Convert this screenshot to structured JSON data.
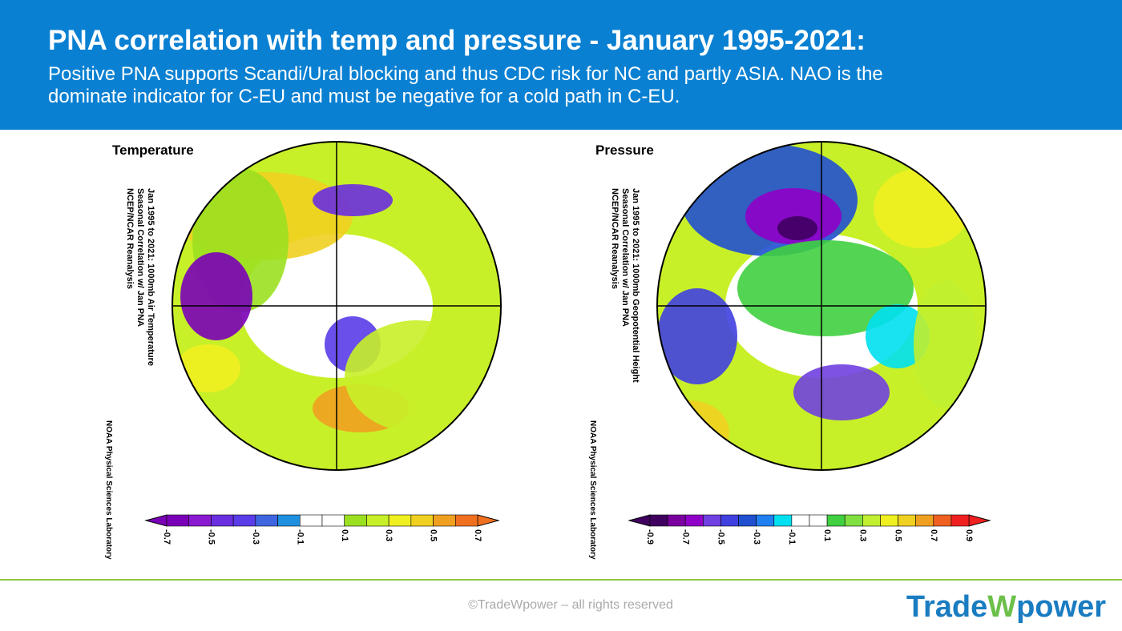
{
  "header": {
    "title": "PNA correlation with temp and pressure - January 1995-2021:",
    "subtitle_lines": [
      "Positive PNA supports Scandi/Ural blocking and thus CDC risk for NC and partly ASIA. NAO is the",
      "dominate indicator for C-EU and must be negative for a cold path in C-EU."
    ]
  },
  "panels": [
    {
      "label": "Temperature",
      "side_text": [
        "Jan 1995 to 2021: 1000mb Air Temperature",
        "Seasonal Correlation w/ Jan PNA",
        "NCEP/NCAR Reanalysis"
      ],
      "credit": "NOAA Physical Sciences Laboratory",
      "colorbar": {
        "labels": [
          "-0.7",
          "-0.5",
          "-0.3",
          "-0.1",
          "0.1",
          "0.3",
          "0.5",
          "0.7"
        ],
        "colors": [
          "#7a00b8",
          "#8a1ad0",
          "#6a2ee0",
          "#5a3ce8",
          "#3f66e0",
          "#1e90e0",
          "#ffffff",
          "#ffffff",
          "#9be020",
          "#c8f028",
          "#f0f020",
          "#f0d020",
          "#f0a020",
          "#f07020"
        ]
      }
    },
    {
      "label": "Pressure",
      "side_text": [
        "Jan 1995 to 2021: 1000mb Geopotential Height",
        "Seasonal Correlation w/ Jan PNA",
        "NCEP/NCAR Reanalysis"
      ],
      "credit": "NOAA Physical Sciences Laboratory",
      "colorbar": {
        "labels": [
          "-0.9",
          "-0.7",
          "-0.5",
          "-0.3",
          "-0.1",
          "0.1",
          "0.3",
          "0.5",
          "0.7",
          "0.9"
        ],
        "colors": [
          "#400060",
          "#7a00a0",
          "#9000c8",
          "#7040e0",
          "#4040e0",
          "#2050d0",
          "#2080f0",
          "#00e0f0",
          "#ffffff",
          "#ffffff",
          "#40d040",
          "#80e040",
          "#c0f030",
          "#f0f020",
          "#f0d020",
          "#f0a020",
          "#f06020",
          "#f02020"
        ]
      }
    }
  ],
  "footer": {
    "copyright": "©TradeWpower – all rights reserved",
    "logo": [
      "Trade",
      "W",
      "power"
    ]
  }
}
